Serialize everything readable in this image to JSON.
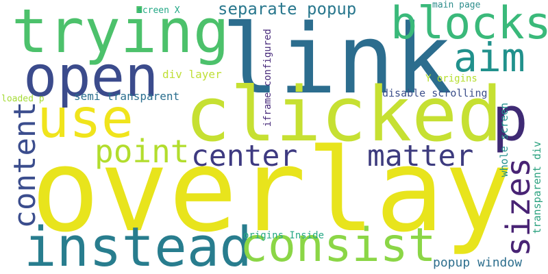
{
  "words": [
    {
      "text": "overlay",
      "color": "#e8e41c"
    },
    {
      "text": "link",
      "color": "#2c6d8e"
    },
    {
      "text": "clicked",
      "color": "#c6e032"
    },
    {
      "text": "trying",
      "color": "#4cc16b"
    },
    {
      "text": "open",
      "color": "#3b4b8c"
    },
    {
      "text": "blocks",
      "color": "#3ab97a"
    },
    {
      "text": "use",
      "color": "#f0e41c"
    },
    {
      "text": "p",
      "color": "#3f2a74"
    },
    {
      "text": "aim",
      "color": "#21918c"
    },
    {
      "text": "instead",
      "color": "#287d8e"
    },
    {
      "text": "consist",
      "color": "#8bd646"
    },
    {
      "text": "content",
      "color": "#3b4d8d"
    },
    {
      "text": "sizes",
      "color": "#482374"
    },
    {
      "text": "center",
      "color": "#3e3a81"
    },
    {
      "text": "matter",
      "color": "#3d3b7e"
    },
    {
      "text": "point",
      "color": "#b2dd2d"
    },
    {
      "text": "separate popup",
      "color": "#2a788e"
    },
    {
      "text": "popup window",
      "color": "#2e6f8e"
    },
    {
      "text": "semi transparent",
      "color": "#2a6e8e"
    },
    {
      "text": "div layer",
      "color": "#bfdf35"
    },
    {
      "text": "disable scrolling",
      "color": "#3c4f8a"
    },
    {
      "text": "Y origins",
      "color": "#b5de2b"
    },
    {
      "text": "screen X",
      "color": "#22a785"
    },
    {
      "text": "main page",
      "color": "#2c8c8b"
    },
    {
      "text": "loaded p",
      "color": "#a5db36"
    },
    {
      "text": "origins Inside",
      "color": "#24a884"
    },
    {
      "text": "iframe configured",
      "color": "#472a7a"
    },
    {
      "text": "whole screen",
      "color": "#21908d"
    },
    {
      "text": "transparent div",
      "color": "#2ba27f"
    }
  ]
}
